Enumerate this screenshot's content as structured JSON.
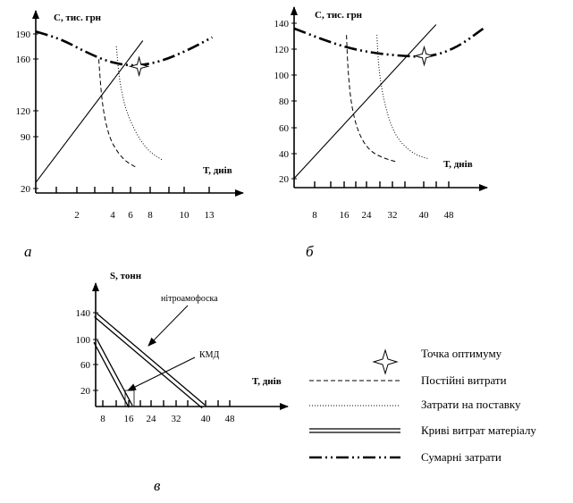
{
  "figure": {
    "panel_labels": [
      "а",
      "б",
      "в"
    ],
    "legend": [
      {
        "key": "optimum",
        "label": "Точка оптимуму",
        "icon": "star-marker-icon"
      },
      {
        "key": "fixed",
        "label": "Постійні витрати",
        "style": "dashed"
      },
      {
        "key": "delivery",
        "label": "Затрати на поставку",
        "style": "dotted"
      },
      {
        "key": "material",
        "label": "Криві витрат матеріалу",
        "style": "double"
      },
      {
        "key": "total",
        "label": "Сумарні затрати",
        "style": "dash-dot-dot"
      }
    ],
    "colors": {
      "ink": "#000000",
      "background": "#ffffff"
    }
  },
  "chart_data": [
    {
      "id": "a",
      "type": "line",
      "ylabel": "С, тис. грн",
      "xlabel": "Т, днів",
      "x_tick_labels": [
        "2",
        "4",
        "6",
        "8",
        "10",
        "13"
      ],
      "y_tick_labels": [
        "20",
        "90",
        "120",
        "160",
        "190"
      ],
      "series": [
        {
          "key": "total",
          "points": [
            [
              0,
              193
            ],
            [
              2,
              184
            ],
            [
              4,
              168
            ],
            [
              6,
              156
            ],
            [
              8,
              152
            ],
            [
              10,
              158
            ],
            [
              12,
              170
            ],
            [
              14,
              186
            ]
          ]
        },
        {
          "key": "fixed",
          "points": [
            [
              5.0,
              160
            ],
            [
              5.2,
              120
            ],
            [
              5.5,
              90
            ],
            [
              6.0,
              65
            ],
            [
              7.0,
              45
            ],
            [
              8.0,
              37
            ]
          ]
        },
        {
          "key": "delivery",
          "points": [
            [
              6.4,
              175
            ],
            [
              6.6,
              140
            ],
            [
              7.0,
              110
            ],
            [
              7.5,
              90
            ],
            [
              8.2,
              70
            ],
            [
              9.0,
              55
            ],
            [
              10.0,
              46
            ]
          ]
        },
        {
          "key": "linear",
          "points": [
            [
              0,
              20
            ],
            [
              8.5,
              182
            ]
          ]
        }
      ],
      "optimum": {
        "x": 8.2,
        "y": 152
      }
    },
    {
      "id": "б",
      "type": "line",
      "ylabel": "С, тис. грн",
      "xlabel": "Т, днів",
      "x_tick_labels": [
        "8",
        "16",
        "24",
        "32",
        "40",
        "48"
      ],
      "y_tick_labels": [
        "20",
        "40",
        "60",
        "80",
        "100",
        "120",
        "140"
      ],
      "series": [
        {
          "key": "total",
          "points": [
            [
              0,
              135
            ],
            [
              8,
              127
            ],
            [
              16,
              120
            ],
            [
              24,
              116
            ],
            [
              32,
              114
            ],
            [
              40,
              113
            ],
            [
              48,
              120
            ],
            [
              56,
              135
            ]
          ]
        },
        {
          "key": "fixed",
          "points": [
            [
              15.5,
              130
            ],
            [
              16,
              100
            ],
            [
              17,
              75
            ],
            [
              19,
              55
            ],
            [
              22,
              42
            ],
            [
              26,
              36
            ],
            [
              30,
              33
            ]
          ]
        },
        {
          "key": "delivery",
          "points": [
            [
              24.5,
              130
            ],
            [
              25,
              105
            ],
            [
              26.5,
              80
            ],
            [
              29,
              58
            ],
            [
              32,
              46
            ],
            [
              36,
              38
            ],
            [
              40,
              35
            ]
          ]
        },
        {
          "key": "linear",
          "points": [
            [
              0,
              20
            ],
            [
              42,
              138
            ]
          ]
        }
      ],
      "optimum": {
        "x": 38.5,
        "y": 114
      }
    },
    {
      "id": "в",
      "type": "line",
      "ylabel": "S, тонн",
      "xlabel": "Т, днів",
      "x_tick_labels": [
        "8",
        "16",
        "24",
        "32",
        "40",
        "48"
      ],
      "y_tick_labels": [
        "20",
        "60",
        "100",
        "140"
      ],
      "annotations": [
        "нітроамофоска",
        "КМД"
      ],
      "series": [
        {
          "key": "material",
          "name": "нітроамофоска",
          "points": [
            [
              0,
              140
            ],
            [
              34,
              0
            ]
          ]
        },
        {
          "key": "material",
          "name": "КМД",
          "points": [
            [
              0,
              100
            ],
            [
              11,
              0
            ]
          ]
        }
      ]
    }
  ]
}
